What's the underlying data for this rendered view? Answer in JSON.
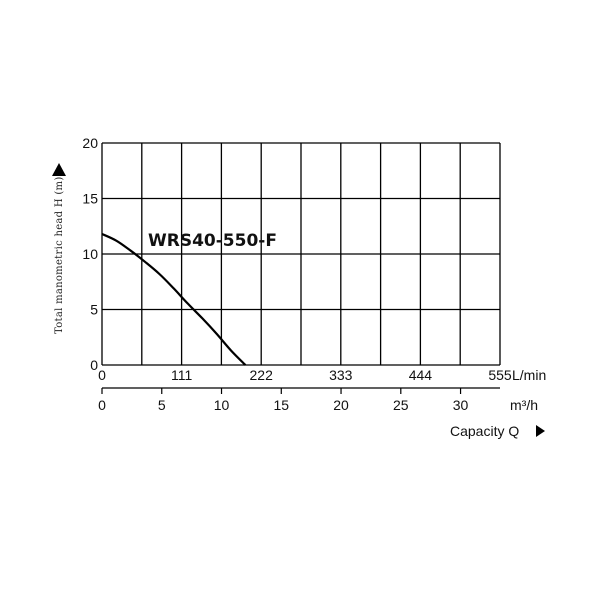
{
  "chart_data": {
    "type": "line",
    "model_label": "WRS40-550-F",
    "ylabel": "Total manometric head H (m)",
    "ylim": [
      0,
      20
    ],
    "y_ticks": [
      "0",
      "5",
      "10",
      "15",
      "20"
    ],
    "x_ticks_lmin": [
      "0",
      "111",
      "222",
      "333",
      "444",
      "555"
    ],
    "x_unit_lmin": "L/min",
    "x_ticks_m3h": [
      "0",
      "5",
      "10",
      "15",
      "20",
      "25",
      "30"
    ],
    "x_unit_m3h": "m³/h",
    "xlabel": "Capacity Q",
    "xlim_lmin": [
      0,
      555
    ],
    "series": [
      {
        "x_lmin": [
          0,
          20,
          40,
          60,
          80,
          100,
          120,
          140,
          160,
          180,
          200
        ],
        "y": [
          11.8,
          11.2,
          10.3,
          9.3,
          8.2,
          6.9,
          5.5,
          4.2,
          2.8,
          1.3,
          0
        ]
      }
    ]
  }
}
